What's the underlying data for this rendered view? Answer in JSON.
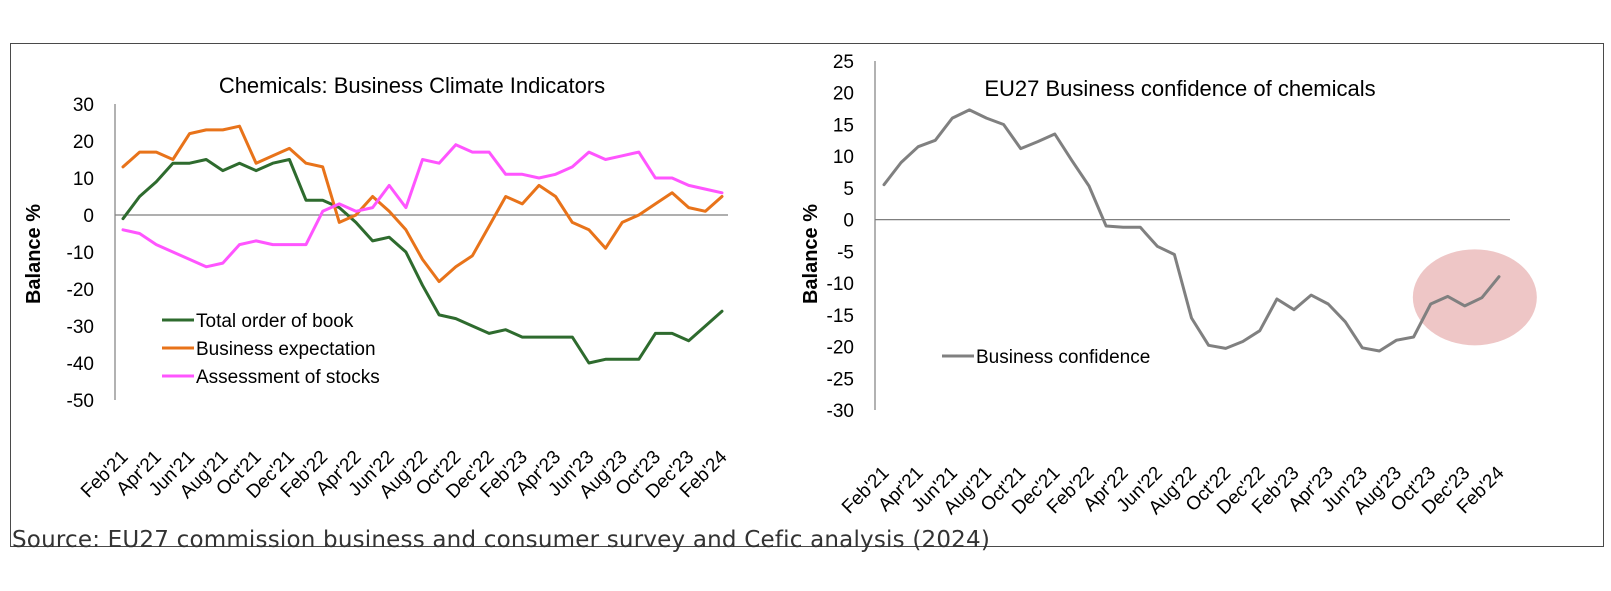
{
  "source": "Source: EU27 commission business and consumer survey and Cefic analysis (2024)",
  "chart_data": [
    {
      "type": "line",
      "title": "Chemicals: Business  Climate Indicators",
      "ylabel": "Balance %",
      "xlabel": "",
      "ylim": [
        -50,
        30
      ],
      "yticks": [
        30,
        20,
        10,
        0,
        -10,
        -20,
        -30,
        -40,
        -50
      ],
      "x": [
        "Feb'21",
        "Mar'21",
        "Apr'21",
        "May'21",
        "Jun'21",
        "Jul'21",
        "Aug'21",
        "Sep'21",
        "Oct'21",
        "Nov'21",
        "Dec'21",
        "Jan'22",
        "Feb'22",
        "Mar'22",
        "Apr'22",
        "May'22",
        "Jun'22",
        "Jul'22",
        "Aug'22",
        "Sep'22",
        "Oct'22",
        "Nov'22",
        "Dec'22",
        "Jan'23",
        "Feb'23",
        "Mar'23",
        "Apr'23",
        "May'23",
        "Jun'23",
        "Jul'23",
        "Aug'23",
        "Sep'23",
        "Oct'23",
        "Nov'23",
        "Dec'23",
        "Jan'24",
        "Feb'24"
      ],
      "xtick_labels": [
        "Feb'21",
        "Apr'21",
        "Jun'21",
        "Aug'21",
        "Oct'21",
        "Dec'21",
        "Feb'22",
        "Apr'22",
        "Jun'22",
        "Aug'22",
        "Oct'22",
        "Dec'22",
        "Feb'23",
        "Apr'23",
        "Jun'23",
        "Aug'23",
        "Oct'23",
        "Dec'23",
        "Feb'24"
      ],
      "series": [
        {
          "name": "Total order of book",
          "color": "#2e6b2e",
          "values": [
            -1,
            5,
            9,
            14,
            14,
            15,
            12,
            14,
            12,
            14,
            15,
            4,
            4,
            2,
            -2,
            -7,
            -6,
            -10,
            -19,
            -27,
            -28,
            -30,
            -32,
            -31,
            -33,
            -33,
            -33,
            -33,
            -40,
            -39,
            -39,
            -39,
            -32,
            -32,
            -34,
            -30,
            -26
          ]
        },
        {
          "name": "Business expectation",
          "color": "#e8731a",
          "values": [
            13,
            17,
            17,
            15,
            22,
            23,
            23,
            24,
            14,
            16,
            18,
            14,
            13,
            -2,
            0,
            5,
            1,
            -4,
            -12,
            -18,
            -14,
            -11,
            -3,
            5,
            3,
            8,
            5,
            -2,
            -4,
            -9,
            -2,
            0,
            3,
            6,
            2,
            1,
            5
          ]
        },
        {
          "name": "Assessment of stocks",
          "color": "#ff55ff",
          "values": [
            -4,
            -5,
            -8,
            -10,
            -12,
            -14,
            -13,
            -8,
            -7,
            -8,
            -8,
            -8,
            1,
            3,
            1,
            2,
            8,
            2,
            15,
            14,
            19,
            17,
            17,
            11,
            11,
            10,
            11,
            13,
            17,
            15,
            16,
            17,
            10,
            10,
            8,
            7,
            6
          ]
        }
      ],
      "legend_position": "bottom-left"
    },
    {
      "type": "line",
      "title": "EU27 Business  confidence  of chemicals",
      "ylabel": "Balance %",
      "xlabel": "",
      "ylim": [
        -30,
        25
      ],
      "yticks": [
        25,
        20,
        15,
        10,
        5,
        0,
        -5,
        -10,
        -15,
        -20,
        -25,
        -30
      ],
      "x": [
        "Feb'21",
        "Mar'21",
        "Apr'21",
        "May'21",
        "Jun'21",
        "Jul'21",
        "Aug'21",
        "Sep'21",
        "Oct'21",
        "Nov'21",
        "Dec'21",
        "Jan'22",
        "Feb'22",
        "Mar'22",
        "Apr'22",
        "May'22",
        "Jun'22",
        "Jul'22",
        "Aug'22",
        "Sep'22",
        "Oct'22",
        "Nov'22",
        "Dec'22",
        "Jan'23",
        "Feb'23",
        "Mar'23",
        "Apr'23",
        "May'23",
        "Jun'23",
        "Jul'23",
        "Aug'23",
        "Sep'23",
        "Oct'23",
        "Nov'23",
        "Dec'23",
        "Jan'24",
        "Feb'24"
      ],
      "xtick_labels": [
        "Feb'21",
        "Apr'21",
        "Jun'21",
        "Aug'21",
        "Oct'21",
        "Dec'21",
        "Feb'22",
        "Apr'22",
        "Jun'22",
        "Aug'22",
        "Oct'22",
        "Dec'22",
        "Feb'23",
        "Apr'23",
        "Jun'23",
        "Aug'23",
        "Oct'23",
        "Dec'23",
        "Feb'24"
      ],
      "series": [
        {
          "name": "Business confidence",
          "color": "#808080",
          "values": [
            5.5,
            9,
            11.5,
            12.5,
            16,
            17.3,
            16,
            15,
            11.2,
            12.3,
            13.5,
            9.3,
            5.3,
            -1,
            -1.2,
            -1.2,
            -4.2,
            -5.5,
            -15.5,
            -19.8,
            -20.3,
            -19.2,
            -17.5,
            -12.5,
            -14.2,
            -11.9,
            -13.3,
            -16.1,
            -20.2,
            -20.7,
            -19,
            -18.5,
            -13.3,
            -12.1,
            -13.6,
            -12.3,
            -9
          ]
        }
      ],
      "legend_position": "bottom-left",
      "highlight": {
        "from": "Oct'23",
        "to": "Feb'24",
        "color": "#e8b3b3"
      }
    }
  ]
}
